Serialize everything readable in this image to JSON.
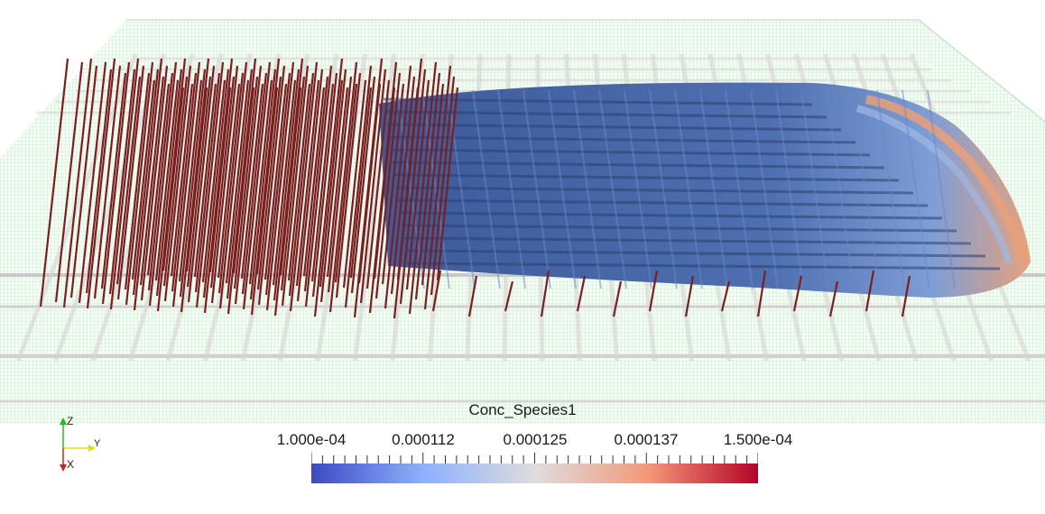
{
  "legend": {
    "title": "Conc_Species1",
    "tick_labels": [
      "1.000e-04",
      "0.000112",
      "0.000125",
      "0.000137",
      "1.500e-04"
    ],
    "range": [
      0.0001,
      0.00015
    ],
    "colors": {
      "low": "#3b4cc0",
      "mid": "#dddddd",
      "high": "#b40426"
    }
  },
  "axes": {
    "z": "Z",
    "y": "Y",
    "x": "X",
    "colors": {
      "z": "#22bb22",
      "y": "#dddd22",
      "x": "#cc2222"
    }
  },
  "scene": {
    "description_icon": "3d-plume-visualization",
    "well_color": "#7a1f1f",
    "domain_color": "#a8e0a8",
    "plume_color": "#3d5a9a"
  }
}
